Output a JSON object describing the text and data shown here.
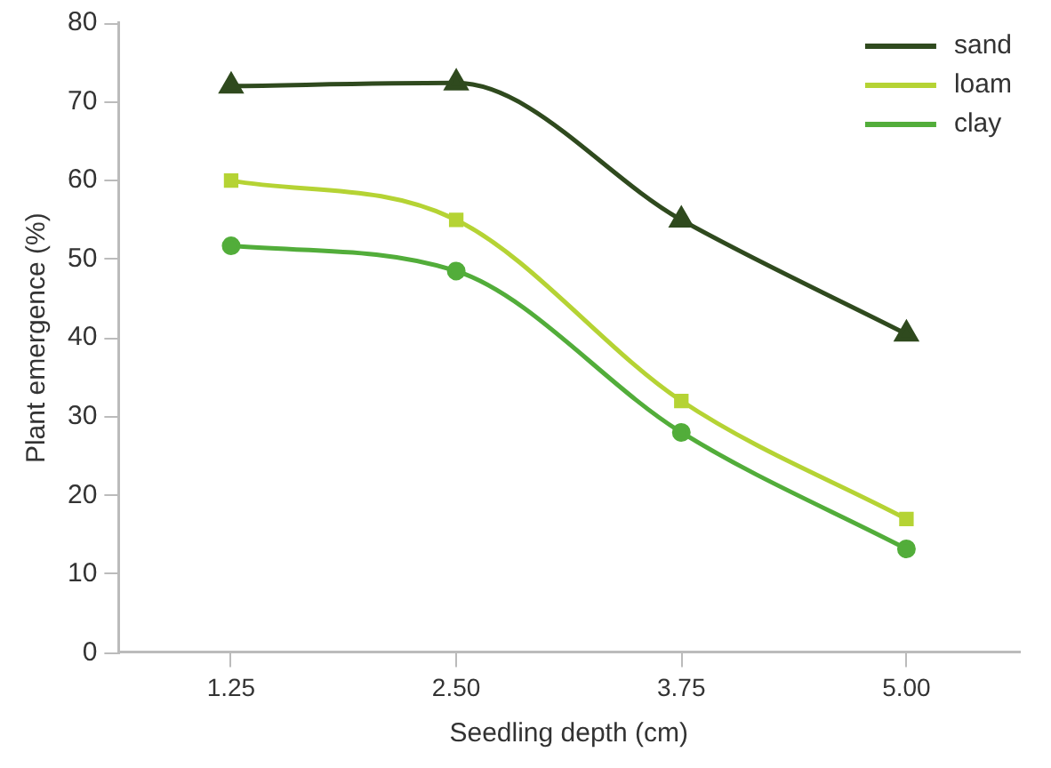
{
  "chart_data": {
    "type": "line",
    "xlabel": "Seedling depth (cm)",
    "ylabel": "Plant emergence (%)",
    "categories": [
      "1.25",
      "2.50",
      "3.75",
      "5.00"
    ],
    "series": [
      {
        "name": "sand",
        "color": "#2f4a1e",
        "marker": "triangle",
        "values": [
          72,
          72.4,
          55,
          40.5
        ]
      },
      {
        "name": "loam",
        "color": "#b5d334",
        "marker": "square",
        "values": [
          60,
          55,
          32,
          17
        ]
      },
      {
        "name": "clay",
        "color": "#52ad3a",
        "marker": "circle",
        "values": [
          51.7,
          48.5,
          28,
          13.2
        ]
      }
    ],
    "ylim": [
      0,
      80
    ],
    "yticks": [
      0,
      10,
      20,
      30,
      40,
      50,
      60,
      70,
      80
    ],
    "grid": false,
    "legend": "top right"
  }
}
